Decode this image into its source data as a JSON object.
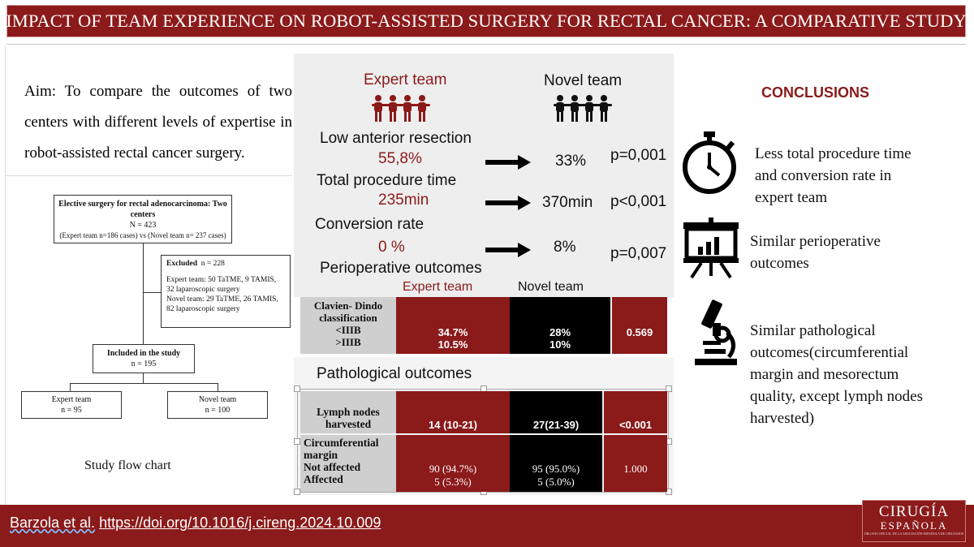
{
  "header": {
    "title": "IMPACT OF TEAM EXPERIENCE ON ROBOT-ASSISTED SURGERY FOR RECTAL CANCER: A COMPARATIVE STUDY"
  },
  "aim": {
    "text": "Aim:  To compare the outcomes of two centers with different levels of expertise in robot-assisted rectal cancer surgery."
  },
  "flowchart": {
    "top_title": "Elective surgery for rectal adenocarcinoma: Two centers",
    "top_n": "N = 423",
    "top_detail": "(Expert team n=186 cases) vs (Novel team n= 237 cases)",
    "excluded_title": "Excluded",
    "excluded_n": "n = 228",
    "excluded_expert": "Expert team: 50 TaTME, 9 TAMIS, 32 laparoscopic surgery",
    "excluded_novel": "Novel team: 29 TaTME, 26 TAMIS, 82 laparoscopic surgery",
    "included_title": "Included in the study",
    "included_n": "n = 195",
    "expert_label": "Expert team",
    "expert_n": "n = 95",
    "novel_label": "Novel team",
    "novel_n": "n = 100",
    "caption": "Study flow chart"
  },
  "teams": {
    "expert": "Expert team",
    "novel": "Novel team"
  },
  "metrics": [
    {
      "label": "Low anterior resection",
      "expert": "55,8%",
      "novel": "33%",
      "p": "p=0,001"
    },
    {
      "label": "Total procedure time",
      "expert": "235min",
      "novel": "370min",
      "p": "p<0,001"
    },
    {
      "label": "Conversion rate",
      "expert": "0 %",
      "novel": "8%",
      "p": "p=0,007"
    }
  ],
  "perioperative": {
    "title": "Perioperative outcomes",
    "expert_head": "Expert team",
    "novel_head": "Novel team",
    "row_label_1": "Clavien- Dindo",
    "row_label_2": "classification",
    "row_label_3": "<IIIB",
    "row_label_4": ">IIIB",
    "expert_1": "34.7%",
    "expert_2": "10.5%",
    "novel_1": "28%",
    "novel_2": "10%",
    "p": "0.569"
  },
  "pathological": {
    "title": "Pathological outcomes",
    "lymph_label_1": "Lymph nodes",
    "lymph_label_2": "harvested",
    "lymph_expert": "14 (10-21)",
    "lymph_novel": "27(21-39)",
    "lymph_p": "<0.001",
    "margin_label_1": "Circumferential",
    "margin_label_2": "margin",
    "margin_label_3": "Not affected",
    "margin_label_4": "Affected",
    "margin_expert_1": "90 (94.7%)",
    "margin_expert_2": "5 (5.3%)",
    "margin_novel_1": "95 (95.0%)",
    "margin_novel_2": "5 (5.0%)",
    "margin_p": "1.000"
  },
  "conclusions": {
    "title": "CONCLUSIONS",
    "items": [
      {
        "icon": "stopwatch-icon",
        "text": "Less total procedure time and conversion rate in expert team"
      },
      {
        "icon": "presentation-chart-icon",
        "text": "Similar perioperative outcomes"
      },
      {
        "icon": "microscope-icon",
        "text": "Similar  pathological outcomes(circumferential margin and mesorectum quality, except lymph nodes harvested)"
      }
    ]
  },
  "footer": {
    "author": "Barzola et al.",
    "doi": "https://doi.org/10.1016/j.cireng.2024.10.009",
    "logo_line1": "CIRUGÍA",
    "logo_line2": "ESPAÑOLA",
    "logo_line3": "ÓRGANO OFICIAL DE LA ASOCIACIÓN ESPAÑOLA DE CIRUJANOS"
  },
  "colors": {
    "brand": "#8b1a1a",
    "novel": "#000000",
    "label_gray": "#cfcfcf"
  }
}
